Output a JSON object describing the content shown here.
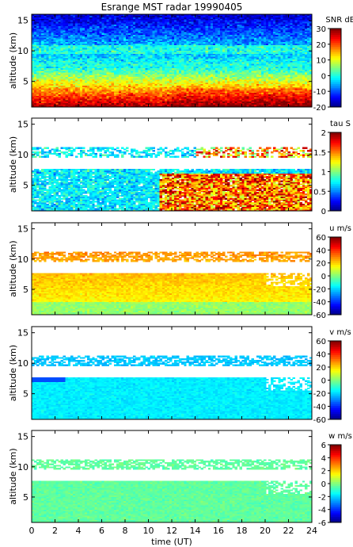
{
  "chart_data": [
    {
      "type": "heatmap",
      "title": "Esrange MST radar 19990405",
      "ylabel": "altitude (km)",
      "colorbar_label": "SNR dB",
      "ylim": [
        0.8,
        16
      ],
      "yticks": [
        5,
        10,
        15
      ],
      "xlim": [
        0,
        24
      ],
      "clim": [
        -20,
        30
      ],
      "cbar_ticks": [
        -20,
        -10,
        0,
        10,
        20,
        30
      ],
      "field": "snr"
    },
    {
      "type": "heatmap",
      "ylabel": "altitude (km)",
      "colorbar_label": "tau S",
      "ylim": [
        0.8,
        16
      ],
      "yticks": [
        5,
        10,
        15
      ],
      "xlim": [
        0,
        24
      ],
      "clim": [
        0,
        2
      ],
      "cbar_ticks": [
        0,
        0.5,
        1,
        1.5,
        2
      ],
      "field": "tau"
    },
    {
      "type": "heatmap",
      "ylabel": "altitude (km)",
      "colorbar_label": "u m/s",
      "ylim": [
        0.8,
        16
      ],
      "yticks": [
        5,
        10,
        15
      ],
      "xlim": [
        0,
        24
      ],
      "clim": [
        -60,
        60
      ],
      "cbar_ticks": [
        -60,
        -40,
        -20,
        0,
        20,
        40,
        60
      ],
      "field": "u"
    },
    {
      "type": "heatmap",
      "ylabel": "altitude (km)",
      "colorbar_label": "v m/s",
      "ylim": [
        0.8,
        16
      ],
      "yticks": [
        5,
        10,
        15
      ],
      "xlim": [
        0,
        24
      ],
      "clim": [
        -60,
        60
      ],
      "cbar_ticks": [
        -60,
        -40,
        -20,
        0,
        20,
        40,
        60
      ],
      "field": "v"
    },
    {
      "type": "heatmap",
      "ylabel": "altitude (km)",
      "colorbar_label": "w m/s",
      "ylim": [
        0.8,
        16
      ],
      "yticks": [
        5,
        10,
        15
      ],
      "xlim": [
        0,
        24
      ],
      "clim": [
        -6,
        6
      ],
      "cbar_ticks": [
        -6,
        -4,
        -2,
        0,
        2,
        4,
        6
      ],
      "xlabel": "time (UT)",
      "xticks": [
        0,
        2,
        4,
        6,
        8,
        10,
        12,
        14,
        16,
        18,
        20,
        22,
        24
      ],
      "field": "w"
    }
  ]
}
